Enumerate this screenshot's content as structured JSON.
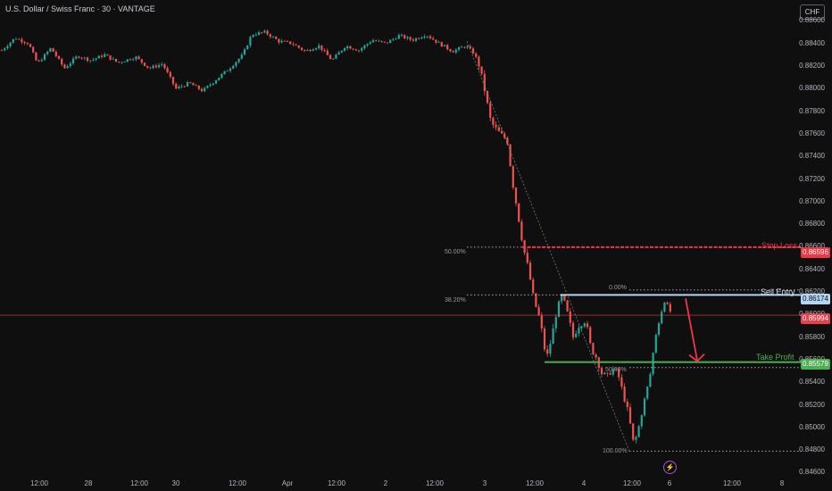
{
  "header": {
    "title": "U.S. Dollar / Swiss Franc · 30 · VANTAGE",
    "currency_button": "CHF"
  },
  "colors": {
    "background": "#0f0f0f",
    "bull": "#26a69a",
    "bear": "#ef5350",
    "stop_loss": "#f23645",
    "sell_entry": "#b3d4f5",
    "take_profit": "#4caf50",
    "current_price": "#e8404a"
  },
  "annotations": {
    "stop_loss": {
      "label": "Stop Loss",
      "price_tag": "0.86596",
      "fib_label": "50.00%"
    },
    "sell_entry": {
      "label": "Sell Entry",
      "price_tag": "0.86174",
      "fib_label": "38.20%",
      "fib_top_label": "0.00%"
    },
    "current_price": {
      "price_tag": "0.85994"
    },
    "take_profit": {
      "label": "Take Profit",
      "price_tag": "0.85579",
      "fib_label": "50.00%"
    },
    "fib_bottom_label": "100.00%"
  },
  "bolt_icon": "lightning-icon",
  "chart_data": {
    "type": "candlestick",
    "title": "U.S. Dollar / Swiss Franc · 30 · VANTAGE",
    "ylim": [
      0.8458,
      0.8869
    ],
    "y_ticks": [
      "0.88600",
      "0.88400",
      "0.88200",
      "0.88000",
      "0.87800",
      "0.87600",
      "0.87400",
      "0.87200",
      "0.87000",
      "0.86800",
      "0.86600",
      "0.86400",
      "0.86200",
      "0.86000",
      "0.85800",
      "0.85600",
      "0.85400",
      "0.85200",
      "0.85000",
      "0.84800",
      "0.84600"
    ],
    "x_ticks": [
      "12:00",
      "28",
      "12:00",
      "30",
      "12:00",
      "Apr",
      "12:00",
      "2",
      "12:00",
      "3",
      "12:00",
      "4",
      "12:00",
      "6",
      "12:00",
      "8"
    ],
    "levels": {
      "stop_loss": 0.86596,
      "sell_entry": 0.86174,
      "current_price": 0.85994,
      "take_profit": 0.85579
    },
    "price_path": [
      [
        0,
        0.8834
      ],
      [
        15,
        0.8845
      ],
      [
        30,
        0.884
      ],
      [
        40,
        0.8822
      ],
      [
        55,
        0.8836
      ],
      [
        70,
        0.8818
      ],
      [
        85,
        0.8829
      ],
      [
        100,
        0.8825
      ],
      [
        115,
        0.883
      ],
      [
        130,
        0.8823
      ],
      [
        150,
        0.8828
      ],
      [
        165,
        0.8818
      ],
      [
        180,
        0.8822
      ],
      [
        195,
        0.88
      ],
      [
        210,
        0.8805
      ],
      [
        225,
        0.8798
      ],
      [
        240,
        0.8808
      ],
      [
        255,
        0.8818
      ],
      [
        270,
        0.883
      ],
      [
        280,
        0.8848
      ],
      [
        295,
        0.885
      ],
      [
        310,
        0.8842
      ],
      [
        325,
        0.884
      ],
      [
        340,
        0.8833
      ],
      [
        355,
        0.8838
      ],
      [
        370,
        0.8825
      ],
      [
        385,
        0.8838
      ],
      [
        400,
        0.8834
      ],
      [
        415,
        0.8843
      ],
      [
        430,
        0.884
      ],
      [
        445,
        0.8847
      ],
      [
        460,
        0.8843
      ],
      [
        475,
        0.8848
      ],
      [
        490,
        0.884
      ],
      [
        505,
        0.8833
      ],
      [
        520,
        0.8838
      ],
      [
        528,
        0.8832
      ],
      [
        535,
        0.882
      ],
      [
        540,
        0.8802
      ],
      [
        548,
        0.877
      ],
      [
        558,
        0.876
      ],
      [
        566,
        0.8755
      ],
      [
        572,
        0.8718
      ],
      [
        578,
        0.869
      ],
      [
        584,
        0.866
      ],
      [
        590,
        0.864
      ],
      [
        596,
        0.8613
      ],
      [
        603,
        0.8595
      ],
      [
        610,
        0.856
      ],
      [
        616,
        0.858
      ],
      [
        622,
        0.8605
      ],
      [
        628,
        0.8617
      ],
      [
        634,
        0.86
      ],
      [
        640,
        0.858
      ],
      [
        646,
        0.859
      ],
      [
        654,
        0.8595
      ],
      [
        660,
        0.857
      ],
      [
        666,
        0.8562
      ],
      [
        672,
        0.8548
      ],
      [
        678,
        0.8545
      ],
      [
        684,
        0.8552
      ],
      [
        690,
        0.8548
      ],
      [
        696,
        0.853
      ],
      [
        702,
        0.8512
      ],
      [
        708,
        0.8484
      ],
      [
        714,
        0.8502
      ],
      [
        720,
        0.8525
      ],
      [
        726,
        0.8545
      ],
      [
        732,
        0.858
      ],
      [
        738,
        0.86
      ],
      [
        744,
        0.8614
      ],
      [
        750,
        0.86
      ]
    ],
    "annotations": [
      "Stop Loss",
      "Sell Entry",
      "Take Profit",
      "50.00%",
      "38.20%",
      "0.00%",
      "100.00%"
    ]
  }
}
